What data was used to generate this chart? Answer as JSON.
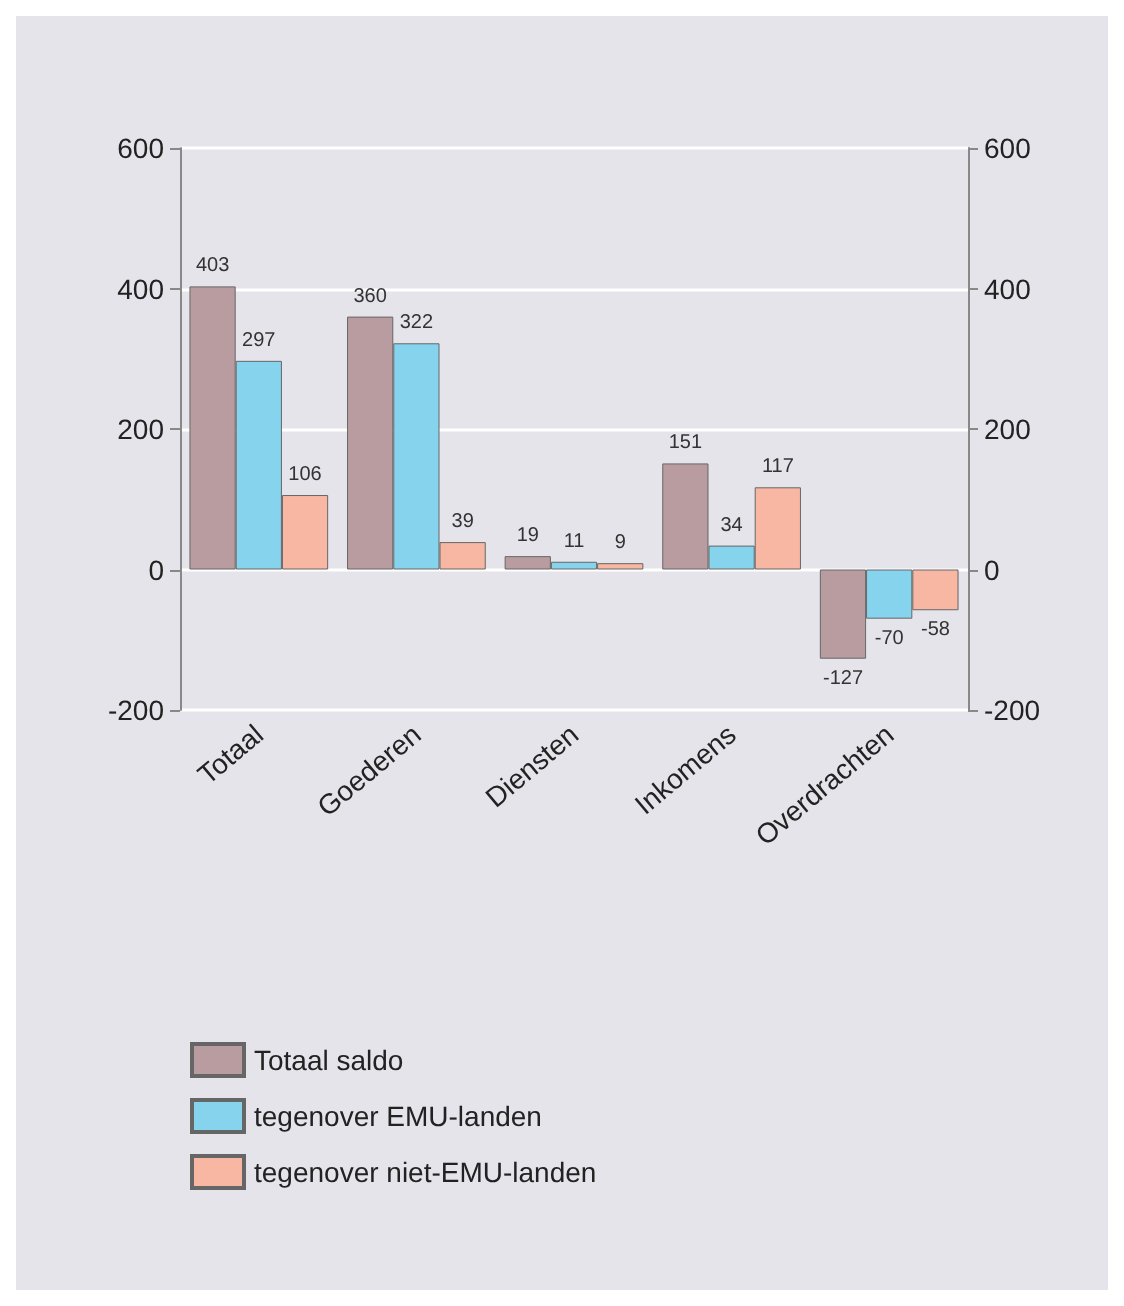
{
  "chart_data": {
    "type": "bar",
    "categories": [
      "Totaal",
      "Goederen",
      "Diensten",
      "Inkomens",
      "Overdrachten"
    ],
    "series": [
      {
        "name": "Totaal saldo",
        "color": "#b99ca0",
        "values": [
          403,
          360,
          19,
          151,
          -127
        ]
      },
      {
        "name": "tegenover EMU-landen",
        "color": "#86d3ee",
        "values": [
          297,
          322,
          11,
          34,
          -70
        ]
      },
      {
        "name": "tegenover niet-EMU-landen",
        "color": "#f8b7a3",
        "values": [
          106,
          39,
          9,
          117,
          -58
        ]
      }
    ],
    "ylim": [
      -200,
      600
    ],
    "yticks": [
      -200,
      0,
      200,
      400,
      600
    ],
    "y2lim": [
      -200,
      600
    ],
    "y2ticks": [
      -200,
      0,
      200,
      400,
      600
    ],
    "grid": "y",
    "legend": "bottom",
    "data_labels": true
  }
}
